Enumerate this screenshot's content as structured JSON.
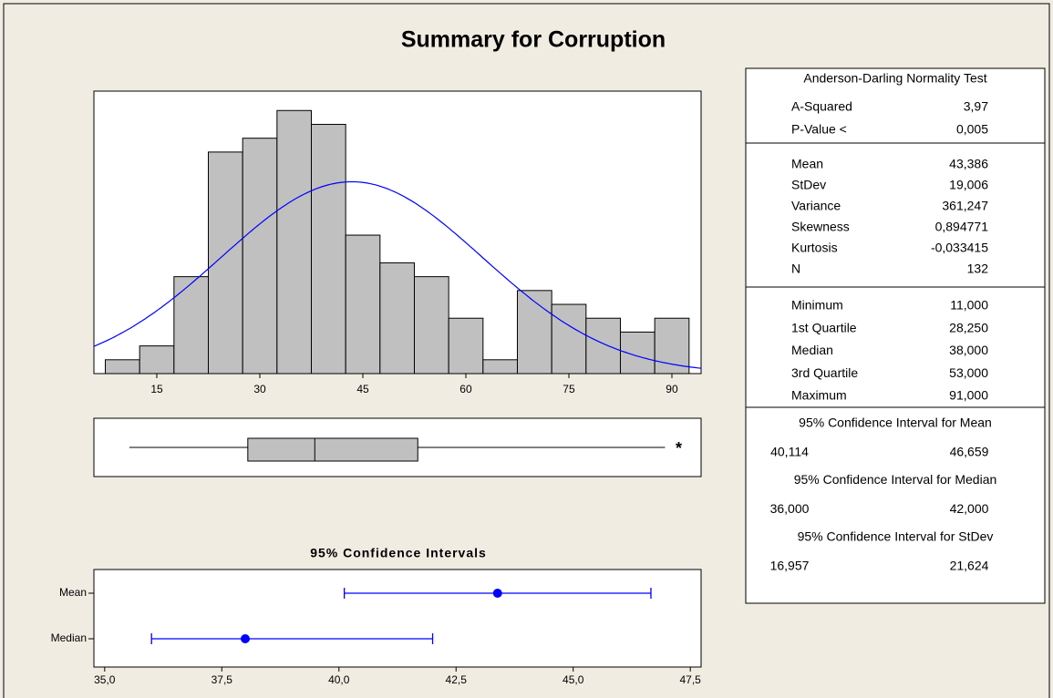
{
  "chart_data": [
    {
      "type": "histogram",
      "title": "Summary for Corruption",
      "bins": [
        7.5,
        12.5,
        17.5,
        22.5,
        27.5,
        32.5,
        37.5,
        42.5,
        47.5,
        52.5,
        57.5,
        62.5,
        67.5,
        72.5,
        77.5,
        82.5,
        87.5,
        92.5
      ],
      "values": [
        1,
        2,
        7,
        16,
        17,
        19,
        18,
        10,
        8,
        7,
        4,
        1,
        6,
        5,
        4,
        3,
        4
      ],
      "color": "#c0c0c0",
      "curve_color": "#0000ff",
      "xlim": [
        5.84,
        94.25
      ],
      "xticks": [
        15,
        30,
        45,
        60,
        75,
        90
      ],
      "ylim": [
        0,
        20.4
      ]
    },
    {
      "type": "box",
      "whisker_low": 11,
      "q1": 28.25,
      "median": 38,
      "q3": 53,
      "whisker_high": 89,
      "outliers": [
        91
      ],
      "color": "#c0c0c0"
    },
    {
      "type": "interval",
      "title": "95% Confidence Intervals",
      "categories": [
        "Mean",
        "Median"
      ],
      "values": [
        43.386,
        38
      ],
      "lower": [
        40.114,
        36
      ],
      "upper": [
        46.659,
        42
      ],
      "color": "#0000ff",
      "xlim": [
        34.77,
        47.73
      ],
      "xticks": [
        {
          "value": 35,
          "label": "35,0"
        },
        {
          "value": 37.5,
          "label": "37,5"
        },
        {
          "value": 40,
          "label": "40,0"
        },
        {
          "value": 42.5,
          "label": "42,5"
        },
        {
          "value": 45,
          "label": "45,0"
        },
        {
          "value": 47.5,
          "label": "47,5"
        }
      ]
    }
  ],
  "stats": {
    "normality": {
      "title": "Anderson-Darling Normality Test",
      "rows": [
        [
          "A-Squared",
          "3,97"
        ],
        [
          "P-Value <",
          "0,005"
        ]
      ]
    },
    "descriptive": {
      "rows": [
        [
          "Mean",
          {
            "value": 43.386,
            "label": "43,386"
          }
        ],
        [
          "StDev",
          {
            "value": 19.006,
            "label": "19,006"
          }
        ],
        [
          "Variance",
          "361,247"
        ],
        [
          "Skewness",
          "0,894771"
        ],
        [
          "Kurtosis",
          "-0,033415"
        ],
        [
          "N",
          "132"
        ]
      ]
    },
    "quartiles": {
      "rows": [
        [
          "Minimum",
          "11,000"
        ],
        [
          "1st Quartile",
          "28,250"
        ],
        [
          "Median",
          "38,000"
        ],
        [
          "3rd Quartile",
          "53,000"
        ],
        [
          "Maximum",
          "91,000"
        ]
      ]
    },
    "intervals": [
      {
        "title": "95% Confidence Interval for Mean",
        "values": [
          "40,114",
          "46,659"
        ]
      },
      {
        "title": "95% Confidence Interval for Median",
        "values": [
          "36,000",
          "42,000"
        ]
      },
      {
        "title": "95% Confidence Interval for StDev",
        "values": [
          "16,957",
          "21,624"
        ]
      }
    ]
  }
}
